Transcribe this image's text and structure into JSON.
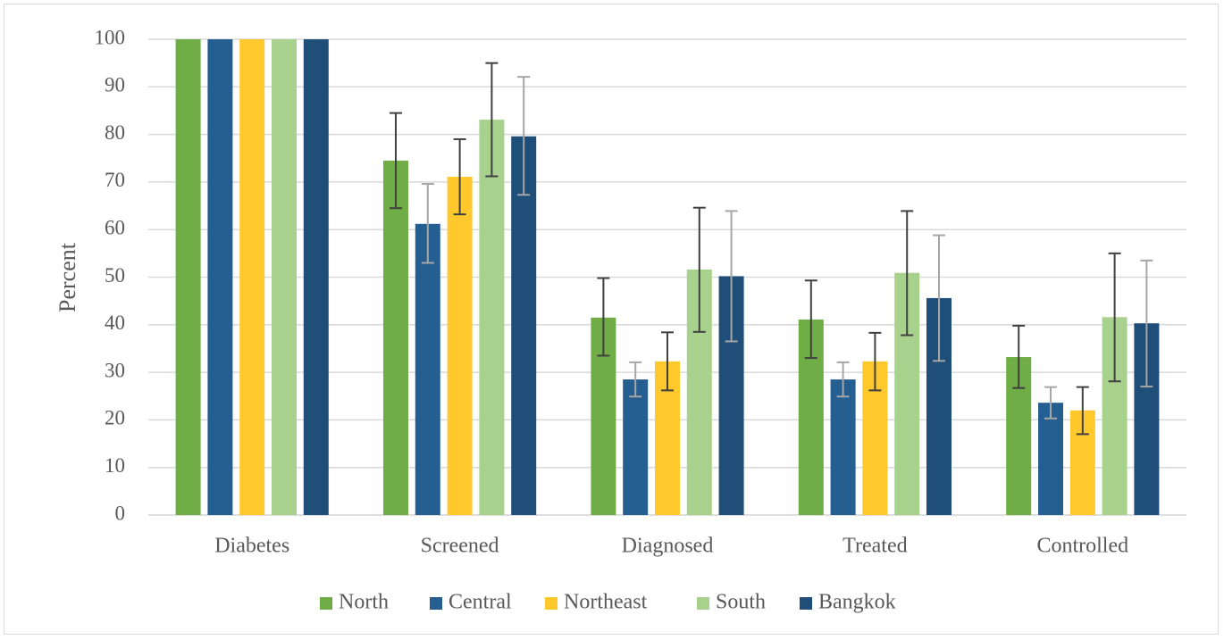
{
  "chart_data": {
    "type": "bar",
    "title": "",
    "xlabel": "",
    "ylabel": "Percent",
    "ylim": [
      0,
      100
    ],
    "yticks": [
      0,
      10,
      20,
      30,
      40,
      50,
      60,
      70,
      80,
      90,
      100
    ],
    "grid": true,
    "legend_position": "bottom",
    "categories": [
      "Diabetes",
      "Screened",
      "Diagnosed",
      "Treated",
      "Controlled"
    ],
    "series": [
      {
        "name": "North",
        "color": "#70ad47",
        "values": [
          100,
          74.5,
          41.5,
          41.1,
          33.2
        ],
        "error_low": [
          null,
          64.5,
          33.5,
          33.0,
          26.7
        ],
        "error_high": [
          null,
          84.5,
          49.8,
          49.3,
          39.8
        ],
        "error_color": "#404040"
      },
      {
        "name": "Central",
        "color": "#255e91",
        "values": [
          100,
          61.2,
          28.5,
          28.5,
          23.6
        ],
        "error_low": [
          null,
          53.0,
          24.9,
          24.9,
          20.3
        ],
        "error_high": [
          null,
          69.6,
          32.1,
          32.1,
          26.9
        ],
        "error_color": "#a6a6a6"
      },
      {
        "name": "Northeast",
        "color": "#ffc92d",
        "values": [
          100,
          71.1,
          32.3,
          32.3,
          22.0
        ],
        "error_low": [
          null,
          63.2,
          26.2,
          26.2,
          17.0
        ],
        "error_high": [
          null,
          79.0,
          38.4,
          38.3,
          26.9
        ],
        "error_color": "#404040"
      },
      {
        "name": "South",
        "color": "#a9d18e",
        "values": [
          100,
          83.1,
          51.6,
          50.9,
          41.6
        ],
        "error_low": [
          null,
          71.2,
          38.5,
          37.8,
          28.1
        ],
        "error_high": [
          null,
          95.0,
          64.6,
          63.9,
          55.0
        ],
        "error_color": "#404040"
      },
      {
        "name": "Bangkok",
        "color": "#1f4e79",
        "values": [
          100,
          79.6,
          50.2,
          45.6,
          40.3
        ],
        "error_low": [
          null,
          67.3,
          36.5,
          32.4,
          27.0
        ],
        "error_high": [
          null,
          92.1,
          63.9,
          58.8,
          53.5
        ],
        "error_color": "#a6a6a6"
      }
    ]
  },
  "colors": {
    "gridline": "#d9d9d9",
    "axis_text": "#595959",
    "frame": "#d9d9d9"
  }
}
